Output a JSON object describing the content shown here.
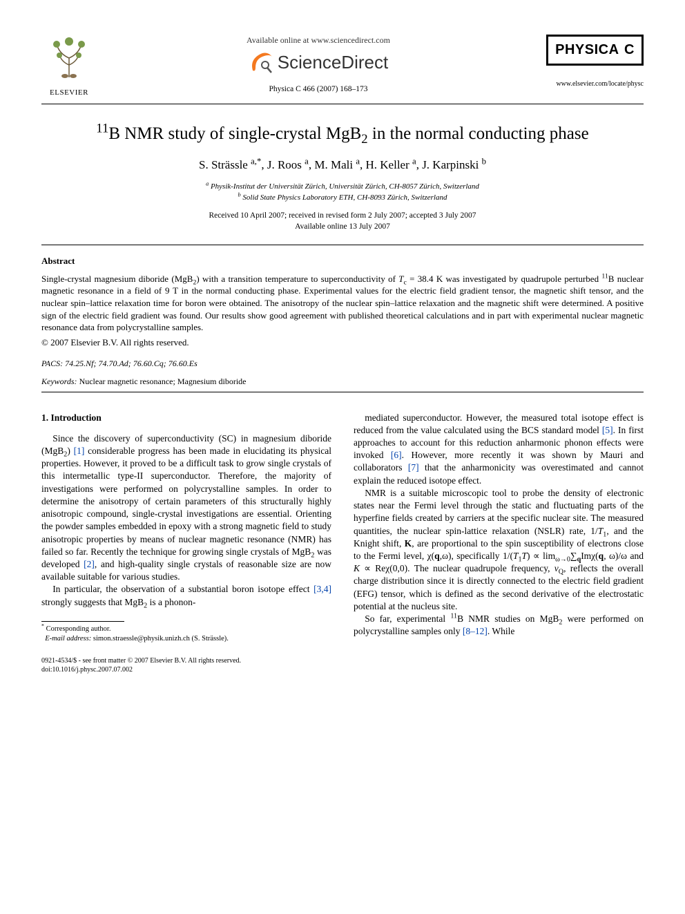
{
  "header": {
    "elsevier_label": "ELSEVIER",
    "available_text": "Available online at www.sciencedirect.com",
    "sciencedirect_label": "ScienceDirect",
    "journal_ref": "Physica C 466 (2007) 168–173",
    "physica_label": "PHYSICA",
    "physica_series": "C",
    "locate_url": "www.elsevier.com/locate/physc"
  },
  "title_html": "<sup>11</sup>B NMR study of single-crystal MgB<sub>2</sub> in the normal conducting phase",
  "authors_html": "S. Strässle <sup>a,*</sup>, J. Roos <sup>a</sup>, M. Mali <sup>a</sup>, H. Keller <sup>a</sup>, J. Karpinski <sup>b</sup>",
  "affiliations": {
    "a": "Physik-Institut der Universität Zürich, Universität Zürich, CH-8057 Zürich, Switzerland",
    "b": "Solid State Physics Laboratory ETH, CH-8093 Zürich, Switzerland"
  },
  "dates": {
    "received": "Received 10 April 2007; received in revised form 2 July 2007; accepted 3 July 2007",
    "online": "Available online 13 July 2007"
  },
  "abstract": {
    "heading": "Abstract",
    "body_html": "Single-crystal magnesium diboride (MgB<sub>2</sub>) with a transition temperature to superconductivity of <i>T</i><sub>c</sub> = 38.4 K was investigated by quadrupole perturbed <sup>11</sup>B nuclear magnetic resonance in a field of 9 T in the normal conducting phase. Experimental values for the electric field gradient tensor, the magnetic shift tensor, and the nuclear spin–lattice relaxation time for boron were obtained. The anisotropy of the nuclear spin–lattice relaxation and the magnetic shift were determined. A positive sign of the electric field gradient was found. Our results show good agreement with published theoretical calculations and in part with experimental nuclear magnetic resonance data from polycrystalline samples.",
    "copyright": "© 2007 Elsevier B.V. All rights reserved."
  },
  "pacs": {
    "label": "PACS:",
    "codes": "74.25.Nf; 74.70.Ad; 76.60.Cq; 76.60.Es"
  },
  "keywords": {
    "label": "Keywords:",
    "text": "Nuclear magnetic resonance; Magnesium diboride"
  },
  "section1": {
    "heading": "1. Introduction",
    "col_left_html": "<p class=\"first\">Since the discovery of superconductivity (SC) in magnesium diboride (MgB<sub>2</sub>) <span class=\"ref\">[1]</span> considerable progress has been made in elucidating its physical properties. However, it proved to be a difficult task to grow single crystals of this intermetallic type-II superconductor. Therefore, the majority of investigations were performed on polycrystalline samples. In order to determine the anisotropy of certain parameters of this structurally highly anisotropic compound, single-crystal investigations are essential. Orienting the powder samples embedded in epoxy with a strong magnetic field to study anisotropic properties by means of nuclear magnetic resonance (NMR) has failed so far. Recently the technique for growing single crystals of MgB<sub>2</sub> was developed <span class=\"ref\">[2]</span>, and high-quality single crystals of reasonable size are now available suitable for various studies.</p><p>In particular, the observation of a substantial boron isotope effect <span class=\"ref\">[3,4]</span> strongly suggests that MgB<sub>2</sub> is a phonon-</p>",
    "col_right_html": "<p class=\"first\">mediated superconductor. However, the measured total isotope effect is reduced from the value calculated using the BCS standard model <span class=\"ref\">[5]</span>. In first approaches to account for this reduction anharmonic phonon effects were invoked <span class=\"ref\">[6]</span>. However, more recently it was shown by Mauri and collaborators <span class=\"ref\">[7]</span> that the anharmonicity was overestimated and cannot explain the reduced isotope effect.</p><p>NMR is a suitable microscopic tool to probe the density of electronic states near the Fermi level through the static and fluctuating parts of the hyperfine fields created by carriers at the specific nuclear site. The measured quantities, the nuclear spin-lattice relaxation (NSLR) rate, 1/<i>T</i><sub>1</sub>, and the Knight shift, <b>K</b>, are proportional to the spin susceptibility of electrons close to the Fermi level, χ(<b>q</b>,ω), specifically 1/(<i>T</i><sub>1</sub><i>T</i>) ∝ lim<sub>ω→0</sub>∑<sub><b>q</b></sub>Imχ(<b>q</b>, ω)/ω and <i>K</i> ∝ Reχ(0,0). The nuclear quadrupole frequency, <i>ν</i><sub>Q</sub>, reflects the overall charge distribution since it is directly connected to the electric field gradient (EFG) tensor, which is defined as the second derivative of the electrostatic potential at the nucleus site.</p><p>So far, experimental <sup>11</sup>B NMR studies on MgB<sub>2</sub> were performed on polycrystalline samples only <span class=\"ref\">[8–12]</span>. While</p>"
  },
  "footnote": {
    "corr": "Corresponding author.",
    "email_label": "E-mail address:",
    "email": "simon.straessle@physik.unizh.ch",
    "email_who": "(S. Strässle)."
  },
  "bottom": {
    "line1": "0921-4534/$ - see front matter © 2007 Elsevier B.V. All rights reserved.",
    "line2": "doi:10.1016/j.physc.2007.07.002"
  },
  "colors": {
    "link": "#0645ad",
    "text": "#000000",
    "bg": "#ffffff",
    "sd_orange": "#f47920"
  }
}
